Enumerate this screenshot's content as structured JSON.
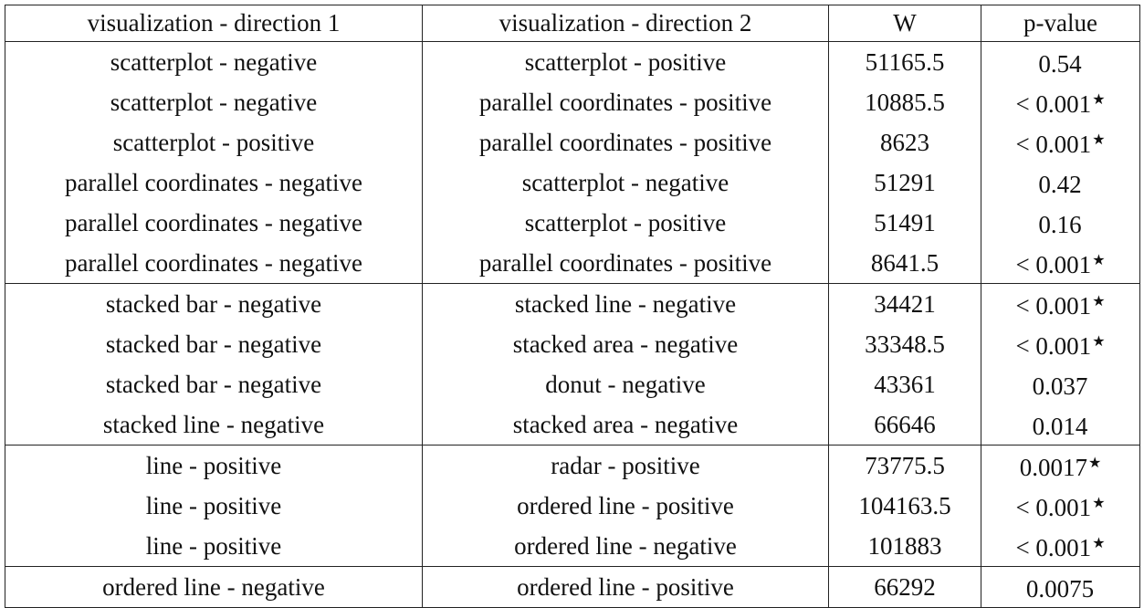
{
  "table": {
    "headers": [
      "visualization - direction 1",
      "visualization - direction 2",
      "W",
      "p-value"
    ],
    "rows": [
      {
        "dir1": "scatterplot - negative",
        "dir2": "scatterplot - positive",
        "w": "51165.5",
        "p": "0.54",
        "star": ""
      },
      {
        "dir1": "scatterplot - negative",
        "dir2": "parallel coordinates - positive",
        "w": "10885.5",
        "p": "< 0.001",
        "star": "★"
      },
      {
        "dir1": "scatterplot - positive",
        "dir2": "parallel coordinates - positive",
        "w": "8623",
        "p": "< 0.001",
        "star": "★"
      },
      {
        "dir1": "parallel coordinates - negative",
        "dir2": "scatterplot - negative",
        "w": "51291",
        "p": "0.42",
        "star": ""
      },
      {
        "dir1": "parallel coordinates - negative",
        "dir2": "scatterplot - positive",
        "w": "51491",
        "p": "0.16",
        "star": ""
      },
      {
        "dir1": "parallel coordinates - negative",
        "dir2": "parallel coordinates - positive",
        "w": "8641.5",
        "p": "< 0.001",
        "star": "★"
      },
      {
        "dir1": "stacked bar - negative",
        "dir2": "stacked line - negative",
        "w": "34421",
        "p": "< 0.001",
        "star": "★"
      },
      {
        "dir1": "stacked bar - negative",
        "dir2": "stacked area - negative",
        "w": "33348.5",
        "p": "< 0.001",
        "star": "★"
      },
      {
        "dir1": "stacked bar - negative",
        "dir2": "donut - negative",
        "w": "43361",
        "p": "0.037",
        "star": ""
      },
      {
        "dir1": "stacked line - negative",
        "dir2": "stacked area - negative",
        "w": "66646",
        "p": "0.014",
        "star": ""
      },
      {
        "dir1": "line - positive",
        "dir2": "radar - positive",
        "w": "73775.5",
        "p": "0.0017",
        "star": "★"
      },
      {
        "dir1": "line - positive",
        "dir2": "ordered line - positive",
        "w": "104163.5",
        "p": "< 0.001",
        "star": "★"
      },
      {
        "dir1": "line - positive",
        "dir2": "ordered line - negative",
        "w": "101883",
        "p": "< 0.001",
        "star": "★"
      },
      {
        "dir1": "ordered line - negative",
        "dir2": "ordered line - positive",
        "w": "66292",
        "p": "0.0075",
        "star": ""
      }
    ]
  }
}
